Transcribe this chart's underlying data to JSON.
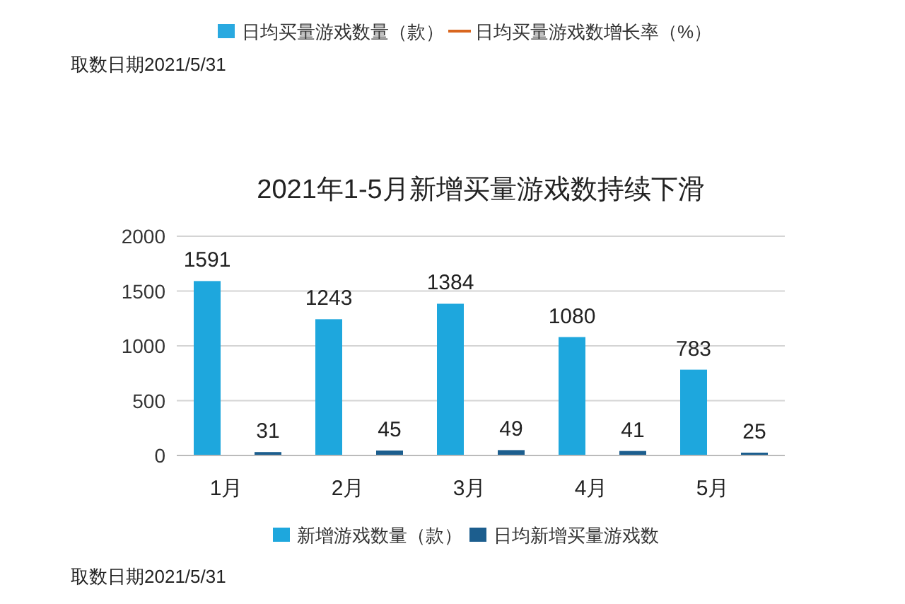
{
  "chart_data": [
    {
      "type": "other",
      "legend": "bottom",
      "series": [
        {
          "name": "日均买量游戏数量（款）",
          "color": "#29a9e0",
          "type": "bar"
        },
        {
          "name": "日均买量游戏数增长率（%）",
          "color": "#d9661e",
          "type": "line"
        }
      ],
      "annotations": [
        "取数日期2021/5/31"
      ]
    },
    {
      "type": "bar",
      "title": "2021年1-5月新增买量游戏数持续下滑",
      "categories": [
        "1月",
        "2月",
        "3月",
        "4月",
        "5月"
      ],
      "series": [
        {
          "name": "新增游戏数量（款）",
          "color": "#1ea7dd",
          "values": [
            1591,
            1243,
            1384,
            1080,
            783
          ]
        },
        {
          "name": "日均新增买量游戏数",
          "color": "#1c5e8e",
          "values": [
            31,
            45,
            49,
            41,
            25
          ]
        }
      ],
      "ylim": [
        0,
        2000
      ],
      "yticks": [
        0,
        500,
        1000,
        1500,
        2000
      ],
      "grid": "y",
      "data_labels": true,
      "legend": "bottom",
      "annotations": [
        "取数日期2021/5/31"
      ]
    }
  ]
}
